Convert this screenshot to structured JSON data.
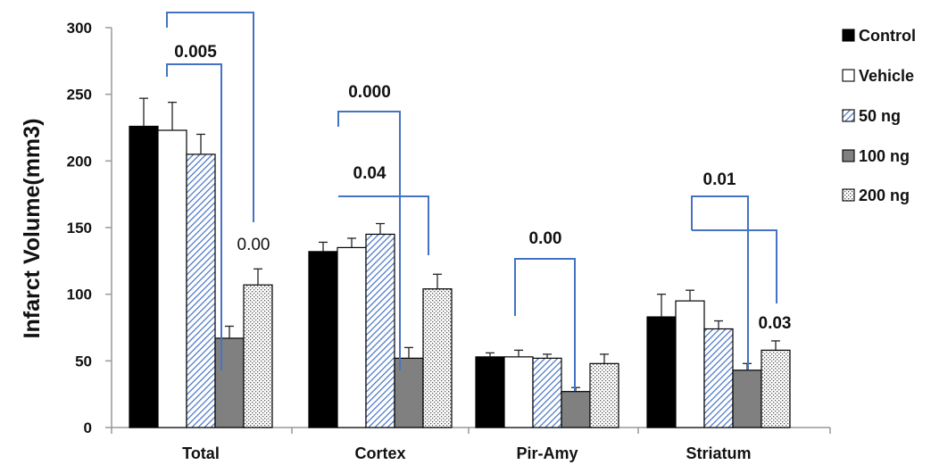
{
  "chart_data": {
    "type": "bar",
    "title": "",
    "xlabel": "",
    "ylabel": "Infarct Volume(mm3)",
    "ylim": [
      0,
      300
    ],
    "yticks": [
      "0",
      "50",
      "100",
      "150",
      "200",
      "250",
      "300"
    ],
    "categories": [
      "Total",
      "Cortex",
      "Pir-Amy",
      "Striatum"
    ],
    "series": [
      {
        "name": "Control",
        "values": [
          226,
          132,
          53,
          83
        ],
        "errors": [
          21,
          7,
          3,
          17
        ],
        "fill": "black"
      },
      {
        "name": "Vehicle",
        "values": [
          223,
          135,
          53,
          95
        ],
        "errors": [
          21,
          7,
          5,
          8
        ],
        "fill": "white"
      },
      {
        "name": "50 ng",
        "values": [
          205,
          145,
          52,
          74
        ],
        "errors": [
          15,
          8,
          3,
          6
        ],
        "fill": "hatch"
      },
      {
        "name": "100 ng",
        "values": [
          67,
          52,
          27,
          43
        ],
        "errors": [
          9,
          8,
          3,
          5
        ],
        "fill": "gray"
      },
      {
        "name": "200 ng",
        "values": [
          107,
          104,
          48,
          58
        ],
        "errors": [
          12,
          11,
          7,
          7
        ],
        "fill": "dots"
      }
    ],
    "legend": {
      "position": "right"
    },
    "grid": false,
    "annotations": [
      {
        "text": "0.005",
        "weight": "bold"
      },
      {
        "text": "0.00",
        "weight": "normal"
      },
      {
        "text": "0.000",
        "weight": "bold"
      },
      {
        "text": "0.04",
        "weight": "bold"
      },
      {
        "text": "0.00",
        "weight": "bold"
      },
      {
        "text": "0.01",
        "weight": "bold"
      },
      {
        "text": "0.03",
        "weight": "bold"
      }
    ]
  },
  "colors": {
    "bracket": "#4472C4",
    "hatch_stroke": "#4472C4",
    "gray_bar": "#808080",
    "black_bar": "#000000"
  }
}
